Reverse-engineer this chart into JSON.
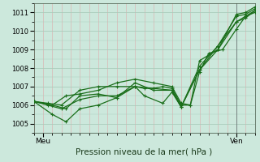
{
  "title": "Pression niveau de la mer( hPa )",
  "bg_color": "#cce8dc",
  "grid_major_color": "#aaccbb",
  "grid_minor_color": "#ddaaaa",
  "line_color": "#1a6e1a",
  "xlim": [
    0,
    48
  ],
  "ylim": [
    1004.5,
    1011.5
  ],
  "yticks": [
    1005,
    1006,
    1007,
    1008,
    1009,
    1010,
    1011
  ],
  "xtick_labels": [
    "Meu",
    "Ven"
  ],
  "xtick_pos": [
    2,
    44
  ],
  "series": [
    [
      0,
      1006.2,
      3,
      1006.1,
      6,
      1006.0,
      10,
      1006.8,
      14,
      1007.0,
      18,
      1007.0,
      22,
      1007.0,
      24,
      1006.9,
      26,
      1006.9,
      28,
      1007.0,
      30,
      1006.9,
      32,
      1006.0,
      34,
      1006.0,
      36,
      1007.8,
      38,
      1008.8,
      41,
      1009.0,
      44,
      1010.1,
      46,
      1010.8,
      48,
      1011.0
    ],
    [
      0,
      1006.2,
      3,
      1006.0,
      6,
      1005.8,
      10,
      1006.3,
      14,
      1006.5,
      18,
      1006.5,
      22,
      1007.0,
      24,
      1006.5,
      28,
      1006.1,
      30,
      1006.7,
      32,
      1005.9,
      36,
      1007.9,
      40,
      1009.0,
      44,
      1010.5,
      46,
      1010.7,
      48,
      1011.1
    ],
    [
      0,
      1006.2,
      4,
      1005.5,
      7,
      1005.1,
      10,
      1005.8,
      14,
      1006.0,
      18,
      1006.4,
      22,
      1007.2,
      26,
      1006.8,
      30,
      1006.8,
      32,
      1005.9,
      36,
      1008.1,
      40,
      1009.2,
      44,
      1010.8,
      46,
      1010.9,
      48,
      1011.2
    ],
    [
      0,
      1006.2,
      4,
      1006.0,
      7,
      1005.8,
      10,
      1006.5,
      14,
      1006.6,
      18,
      1006.4,
      22,
      1007.0,
      26,
      1006.9,
      30,
      1006.8,
      32,
      1005.9,
      36,
      1007.9,
      40,
      1009.2,
      44,
      1010.5,
      46,
      1010.8,
      48,
      1011.1
    ],
    [
      0,
      1006.2,
      4,
      1006.0,
      7,
      1006.5,
      10,
      1006.6,
      14,
      1006.8,
      18,
      1007.2,
      22,
      1007.4,
      26,
      1007.2,
      30,
      1007.0,
      32,
      1006.1,
      34,
      1006.0,
      36,
      1008.4,
      40,
      1009.0,
      44,
      1010.9,
      46,
      1011.0,
      48,
      1011.3
    ]
  ]
}
